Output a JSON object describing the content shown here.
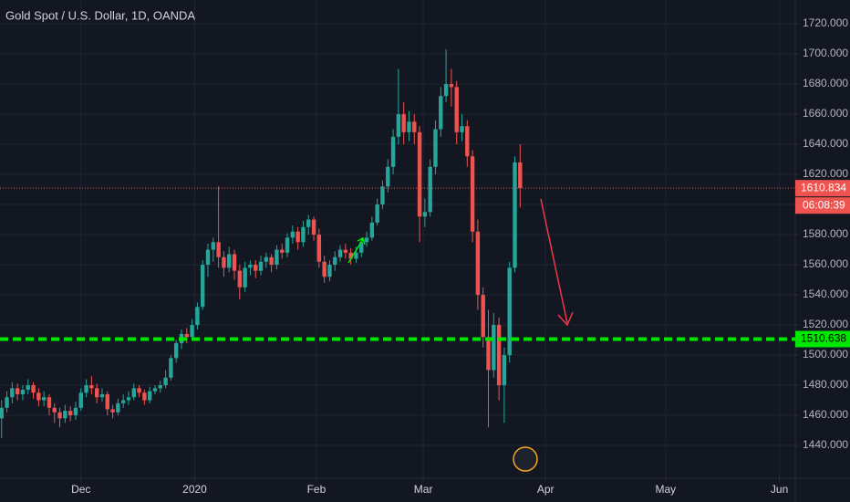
{
  "chart_data": {
    "type": "candlestick",
    "title": "Gold Spot / U.S. Dollar, 1D, OANDA",
    "x": [
      -15,
      -14,
      -13,
      -12,
      -11,
      -10,
      -9,
      -8,
      -7,
      -6,
      -5,
      -4,
      -3,
      -2,
      -1,
      0,
      1,
      2,
      3,
      4,
      5,
      6,
      7,
      8,
      9,
      10,
      11,
      12,
      13,
      14,
      15,
      16,
      17,
      18,
      19,
      20,
      21,
      22,
      23,
      24,
      25,
      26,
      27,
      28,
      29,
      30,
      31,
      32,
      33,
      34,
      35,
      36,
      37,
      38,
      39,
      40,
      41,
      42,
      43,
      44,
      45,
      46,
      47,
      48,
      49,
      50,
      51,
      52,
      53,
      54,
      55,
      56,
      57,
      58,
      59,
      60,
      61,
      62,
      63,
      64,
      65,
      66,
      67,
      68,
      69,
      70,
      71,
      72,
      73,
      74,
      75,
      76,
      77,
      78,
      79,
      80,
      81,
      82,
      83
    ],
    "open": [
      1458,
      1465,
      1472,
      1478,
      1474,
      1477,
      1480,
      1475,
      1470,
      1472,
      1465,
      1462,
      1458,
      1463,
      1460,
      1465,
      1475,
      1480,
      1478,
      1472,
      1474,
      1464,
      1462,
      1468,
      1470,
      1472,
      1478,
      1475,
      1470,
      1476,
      1478,
      1480,
      1485,
      1498,
      1508,
      1514,
      1512,
      1520,
      1532,
      1560,
      1570,
      1575,
      1565,
      1558,
      1567,
      1556,
      1545,
      1558,
      1560,
      1556,
      1562,
      1565,
      1560,
      1570,
      1568,
      1578,
      1582,
      1575,
      1585,
      1590,
      1580,
      1562,
      1552,
      1560,
      1565,
      1570,
      1568,
      1564,
      1568,
      1575,
      1578,
      1588,
      1600,
      1612,
      1625,
      1645,
      1660,
      1648,
      1655,
      1648,
      1592,
      1595,
      1625,
      1650,
      1672,
      1680,
      1678,
      1648,
      1652,
      1632,
      1582,
      1540,
      1512,
      1490,
      1520,
      1480,
      1500,
      1558,
      1628
    ],
    "high": [
      1470,
      1476,
      1482,
      1481,
      1480,
      1484,
      1482,
      1478,
      1476,
      1474,
      1468,
      1465,
      1467,
      1466,
      1469,
      1478,
      1484,
      1486,
      1481,
      1478,
      1476,
      1467,
      1471,
      1474,
      1476,
      1481,
      1480,
      1477,
      1479,
      1480,
      1483,
      1490,
      1500,
      1510,
      1517,
      1518,
      1524,
      1535,
      1563,
      1574,
      1578,
      1612,
      1569,
      1572,
      1570,
      1560,
      1562,
      1563,
      1563,
      1566,
      1568,
      1567,
      1573,
      1574,
      1581,
      1586,
      1585,
      1589,
      1593,
      1592,
      1584,
      1566,
      1563,
      1569,
      1573,
      1574,
      1571,
      1572,
      1578,
      1582,
      1592,
      1604,
      1616,
      1630,
      1650,
      1690,
      1668,
      1662,
      1660,
      1652,
      1604,
      1630,
      1656,
      1678,
      1703,
      1690,
      1682,
      1660,
      1656,
      1636,
      1590,
      1545,
      1530,
      1528,
      1525,
      1505,
      1562,
      1632,
      1640
    ],
    "low": [
      1445,
      1462,
      1468,
      1470,
      1470,
      1474,
      1471,
      1466,
      1466,
      1460,
      1455,
      1452,
      1455,
      1456,
      1457,
      1463,
      1472,
      1474,
      1468,
      1469,
      1460,
      1458,
      1460,
      1465,
      1467,
      1470,
      1472,
      1467,
      1468,
      1474,
      1475,
      1478,
      1483,
      1495,
      1504,
      1508,
      1510,
      1517,
      1530,
      1552,
      1562,
      1558,
      1552,
      1555,
      1550,
      1537,
      1542,
      1553,
      1551,
      1553,
      1558,
      1555,
      1557,
      1564,
      1565,
      1574,
      1570,
      1572,
      1580,
      1576,
      1558,
      1548,
      1549,
      1556,
      1562,
      1564,
      1560,
      1561,
      1565,
      1572,
      1576,
      1586,
      1597,
      1608,
      1620,
      1640,
      1640,
      1642,
      1640,
      1575,
      1585,
      1592,
      1620,
      1645,
      1668,
      1665,
      1640,
      1642,
      1625,
      1575,
      1530,
      1505,
      1452,
      1485,
      1470,
      1455,
      1495,
      1555,
      1598
    ],
    "close": [
      1465,
      1472,
      1478,
      1474,
      1477,
      1480,
      1475,
      1470,
      1472,
      1465,
      1462,
      1458,
      1463,
      1460,
      1465,
      1475,
      1480,
      1478,
      1472,
      1474,
      1464,
      1462,
      1468,
      1470,
      1472,
      1478,
      1475,
      1470,
      1476,
      1478,
      1480,
      1485,
      1498,
      1508,
      1514,
      1512,
      1520,
      1532,
      1560,
      1570,
      1575,
      1565,
      1558,
      1567,
      1556,
      1545,
      1558,
      1560,
      1556,
      1562,
      1565,
      1560,
      1570,
      1568,
      1578,
      1582,
      1575,
      1585,
      1590,
      1580,
      1562,
      1552,
      1560,
      1565,
      1570,
      1568,
      1564,
      1568,
      1575,
      1578,
      1588,
      1600,
      1612,
      1625,
      1645,
      1660,
      1648,
      1655,
      1648,
      1592,
      1595,
      1625,
      1650,
      1672,
      1680,
      1678,
      1648,
      1652,
      1632,
      1582,
      1540,
      1512,
      1490,
      1520,
      1480,
      1500,
      1558,
      1628,
      1610.834
    ],
    "up_color": "#26a69a",
    "down_color": "#ef5350",
    "xlim": [
      -15.3,
      135
    ],
    "xticks": [
      {
        "value": 0,
        "label": "Dec"
      },
      {
        "value": 21.5,
        "label": "2020"
      },
      {
        "value": 44.5,
        "label": "Feb"
      },
      {
        "value": 64.7,
        "label": "Mar"
      },
      {
        "value": 87.8,
        "label": "Apr"
      },
      {
        "value": 110.5,
        "label": "May"
      },
      {
        "value": 132,
        "label": "Jun"
      }
    ],
    "ylim": [
      1418.2,
      1735.8
    ],
    "yticks": [
      {
        "value": 1440,
        "label": "1440.000"
      },
      {
        "value": 1460,
        "label": "1460.000"
      },
      {
        "value": 1480,
        "label": "1480.000"
      },
      {
        "value": 1500,
        "label": "1500.000"
      },
      {
        "value": 1520,
        "label": "1520.000"
      },
      {
        "value": 1540,
        "label": "1540.000"
      },
      {
        "value": 1560,
        "label": "1560.000"
      },
      {
        "value": 1580,
        "label": "1580.000"
      },
      {
        "value": 1600,
        "label": "1600.000"
      },
      {
        "value": 1620,
        "label": "1620.000"
      },
      {
        "value": 1640,
        "label": "1640.000"
      },
      {
        "value": 1660,
        "label": "1660.000"
      },
      {
        "value": 1680,
        "label": "1680.000"
      },
      {
        "value": 1700,
        "label": "1700.000"
      },
      {
        "value": 1720,
        "label": "1720.000"
      }
    ],
    "grid": true,
    "price_line": {
      "value": 1610.834,
      "color": "#ef5350",
      "countdown": "06:08:39"
    },
    "level_line": {
      "value": 1510.638,
      "color": "#00e600"
    }
  }
}
